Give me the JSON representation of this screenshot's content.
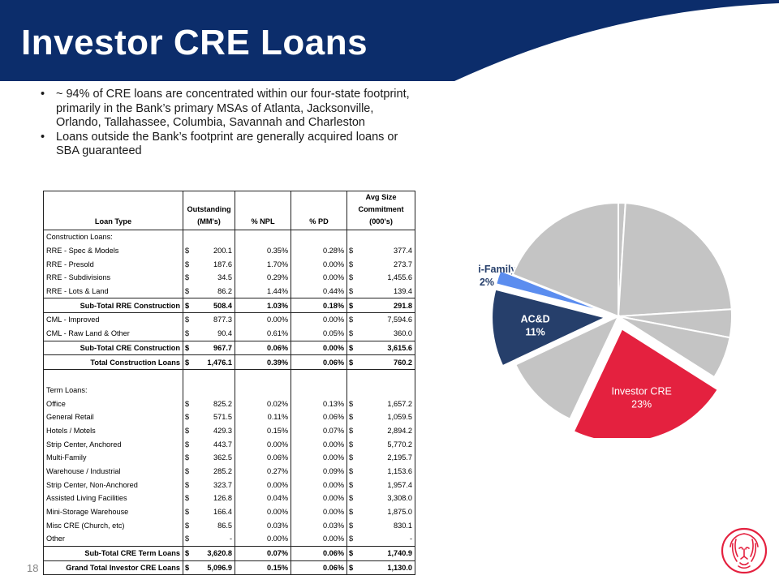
{
  "title": "Investor CRE Loans",
  "page_number": "18",
  "colors": {
    "navy": "#0c2d6b",
    "red": "#e4213f",
    "slate": "#263f6b",
    "light_blue": "#5b8def",
    "gray": "#c4c4c4"
  },
  "bullets": [
    "~ 94% of CRE loans are concentrated within our four-state footprint, primarily in the Bank’s primary MSAs of Atlanta, Jacksonville, Orlando, Tallahassee, Columbia, Savannah and Charleston",
    "Loans outside the Bank’s footprint are generally acquired loans or SBA guaranteed"
  ],
  "table": {
    "headers": {
      "loan_type": "Loan Type",
      "outstanding_1": "Outstanding",
      "outstanding_2": "(MM's)",
      "npl": "% NPL",
      "pd": "% PD",
      "avg_1": "Avg Size",
      "avg_2": "Commitment",
      "avg_3": "(000's)"
    },
    "rows": [
      {
        "kind": "section",
        "label": "Construction Loans:"
      },
      {
        "kind": "row",
        "label": "RRE - Spec & Models",
        "cur": "$",
        "outstanding": "200.1",
        "npl": "0.35%",
        "pd": "0.28%",
        "cur2": "$",
        "avg": "377.4"
      },
      {
        "kind": "row",
        "label": "RRE - Presold",
        "cur": "$",
        "outstanding": "187.6",
        "npl": "1.70%",
        "pd": "0.00%",
        "cur2": "$",
        "avg": "273.7"
      },
      {
        "kind": "row",
        "label": "RRE - Subdivisions",
        "cur": "$",
        "outstanding": "34.5",
        "npl": "0.29%",
        "pd": "0.00%",
        "cur2": "$",
        "avg": "1,455.6"
      },
      {
        "kind": "row",
        "label": "RRE - Lots & Land",
        "cur": "$",
        "outstanding": "86.2",
        "npl": "1.44%",
        "pd": "0.44%",
        "cur2": "$",
        "avg": "139.4"
      },
      {
        "kind": "subtotal",
        "label": "Sub-Total RRE Construction",
        "cur": "$",
        "outstanding": "508.4",
        "npl": "1.03%",
        "pd": "0.18%",
        "cur2": "$",
        "avg": "291.8"
      },
      {
        "kind": "row",
        "label": "CML - Improved",
        "cur": "$",
        "outstanding": "877.3",
        "npl": "0.00%",
        "pd": "0.00%",
        "cur2": "$",
        "avg": "7,594.6"
      },
      {
        "kind": "row",
        "label": "CML - Raw Land & Other",
        "cur": "$",
        "outstanding": "90.4",
        "npl": "0.61%",
        "pd": "0.05%",
        "cur2": "$",
        "avg": "360.0"
      },
      {
        "kind": "subtotal",
        "label": "Sub-Total CRE Construction",
        "cur": "$",
        "outstanding": "967.7",
        "npl": "0.06%",
        "pd": "0.00%",
        "cur2": "$",
        "avg": "3,615.6"
      },
      {
        "kind": "subtotal",
        "label": "Total Construction Loans",
        "cur": "$",
        "outstanding": "1,476.1",
        "npl": "0.39%",
        "pd": "0.06%",
        "cur2": "$",
        "avg": "760.2"
      },
      {
        "kind": "blank"
      },
      {
        "kind": "section",
        "label": "Term Loans:"
      },
      {
        "kind": "row",
        "label": "Office",
        "cur": "$",
        "outstanding": "825.2",
        "npl": "0.02%",
        "pd": "0.13%",
        "cur2": "$",
        "avg": "1,657.2"
      },
      {
        "kind": "row",
        "label": "General Retail",
        "cur": "$",
        "outstanding": "571.5",
        "npl": "0.11%",
        "pd": "0.06%",
        "cur2": "$",
        "avg": "1,059.5"
      },
      {
        "kind": "row",
        "label": "Hotels / Motels",
        "cur": "$",
        "outstanding": "429.3",
        "npl": "0.15%",
        "pd": "0.07%",
        "cur2": "$",
        "avg": "2,894.2"
      },
      {
        "kind": "row",
        "label": "Strip Center, Anchored",
        "cur": "$",
        "outstanding": "443.7",
        "npl": "0.00%",
        "pd": "0.00%",
        "cur2": "$",
        "avg": "5,770.2"
      },
      {
        "kind": "row",
        "label": "Multi-Family",
        "cur": "$",
        "outstanding": "362.5",
        "npl": "0.06%",
        "pd": "0.00%",
        "cur2": "$",
        "avg": "2,195.7"
      },
      {
        "kind": "row",
        "label": "Warehouse / Industrial",
        "cur": "$",
        "outstanding": "285.2",
        "npl": "0.27%",
        "pd": "0.09%",
        "cur2": "$",
        "avg": "1,153.6"
      },
      {
        "kind": "row",
        "label": "Strip Center, Non-Anchored",
        "cur": "$",
        "outstanding": "323.7",
        "npl": "0.00%",
        "pd": "0.00%",
        "cur2": "$",
        "avg": "1,957.4"
      },
      {
        "kind": "row",
        "label": "Assisted Living Facilities",
        "cur": "$",
        "outstanding": "126.8",
        "npl": "0.04%",
        "pd": "0.00%",
        "cur2": "$",
        "avg": "3,308.0"
      },
      {
        "kind": "row",
        "label": "Mini-Storage Warehouse",
        "cur": "$",
        "outstanding": "166.4",
        "npl": "0.00%",
        "pd": "0.00%",
        "cur2": "$",
        "avg": "1,875.0"
      },
      {
        "kind": "row",
        "label": "Misc CRE (Church, etc)",
        "cur": "$",
        "outstanding": "86.5",
        "npl": "0.03%",
        "pd": "0.03%",
        "cur2": "$",
        "avg": "830.1"
      },
      {
        "kind": "row",
        "label": "Other",
        "cur": "$",
        "outstanding": "-",
        "npl": "0.00%",
        "pd": "0.00%",
        "cur2": "$",
        "avg": "-"
      },
      {
        "kind": "subtotal",
        "label": "Sub-Total CRE Term Loans",
        "cur": "$",
        "outstanding": "3,620.8",
        "npl": "0.07%",
        "pd": "0.06%",
        "cur2": "$",
        "avg": "1,740.9"
      },
      {
        "kind": "total",
        "label": "Grand Total Investor CRE Loans",
        "cur": "$",
        "outstanding": "5,096.9",
        "npl": "0.15%",
        "pd": "0.06%",
        "cur2": "$",
        "avg": "1,130.0"
      }
    ]
  },
  "chart_data": {
    "type": "pie",
    "title": "",
    "slices": [
      {
        "label": "",
        "value": 1,
        "color": "#c4c4c4",
        "exploded": false
      },
      {
        "label": "",
        "value": 23,
        "color": "#c4c4c4",
        "exploded": false
      },
      {
        "label": "",
        "value": 4,
        "color": "#c4c4c4",
        "exploded": false
      },
      {
        "label": "",
        "value": 6,
        "color": "#c4c4c4",
        "exploded": false
      },
      {
        "label": "Investor CRE",
        "pct_label": "23%",
        "value": 23,
        "color": "#e4213f",
        "exploded": true
      },
      {
        "label": "",
        "value": 11,
        "color": "#c4c4c4",
        "exploded": false
      },
      {
        "label": "AC&D",
        "pct_label": "11%",
        "value": 11,
        "color": "#263f6b",
        "exploded": true
      },
      {
        "label": "Multi-Family",
        "pct_label": "2%",
        "value": 2,
        "color": "#5b8def",
        "exploded": true
      },
      {
        "label": "",
        "value": 19,
        "color": "#c4c4c4",
        "exploded": false
      }
    ]
  }
}
